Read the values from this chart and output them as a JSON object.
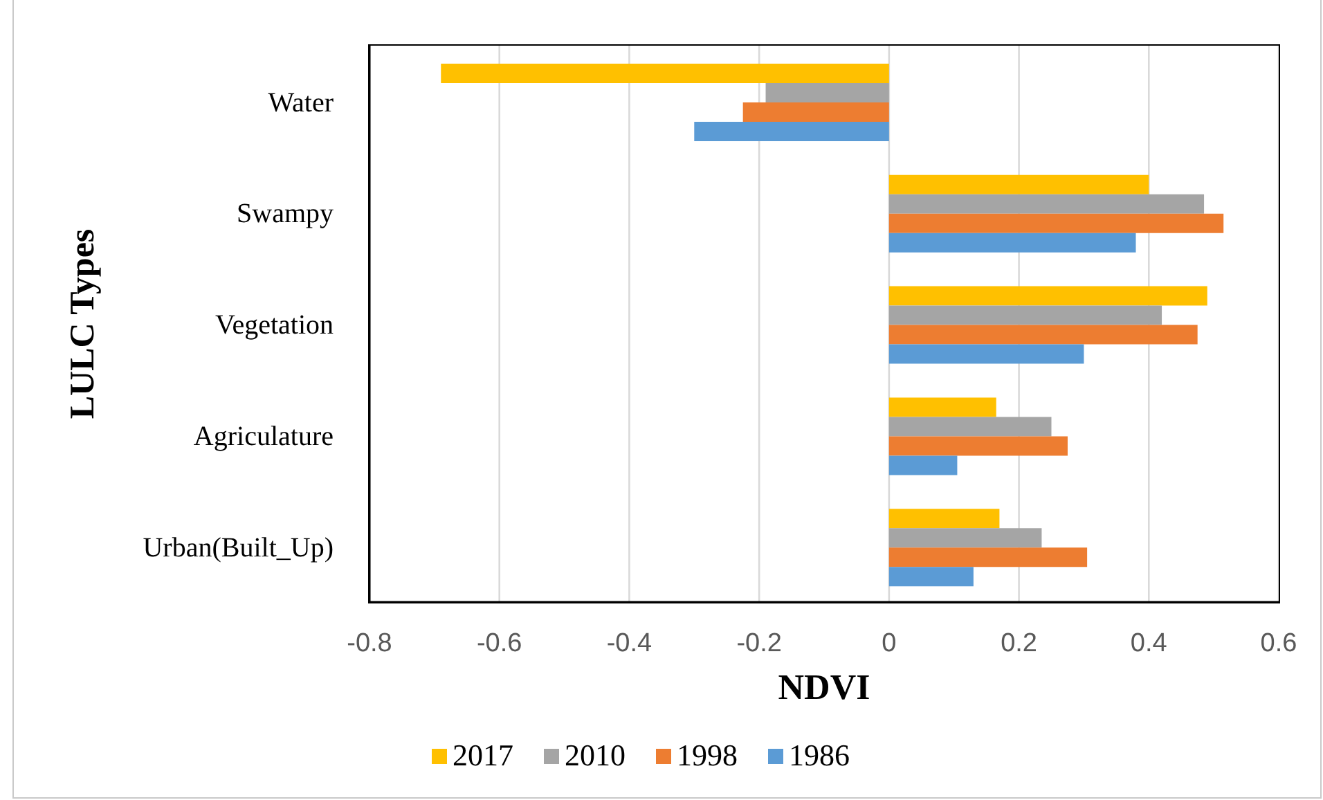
{
  "chart_data": {
    "type": "bar",
    "orientation": "horizontal",
    "xlabel": "NDVI",
    "ylabel": "LULC Types",
    "categories": [
      "Water",
      "Swampy",
      "Vegetation",
      "Agriculature",
      "Urban(Built_Up)"
    ],
    "series": [
      {
        "name": "2017",
        "color": "#ffc000",
        "values": [
          -0.69,
          0.4,
          0.49,
          0.165,
          0.17
        ]
      },
      {
        "name": "2010",
        "color": "#a5a5a5",
        "values": [
          -0.19,
          0.485,
          0.42,
          0.25,
          0.235
        ]
      },
      {
        "name": "1998",
        "color": "#ed7d31",
        "values": [
          -0.225,
          0.515,
          0.475,
          0.275,
          0.305
        ]
      },
      {
        "name": "1986",
        "color": "#5b9bd5",
        "values": [
          -0.3,
          0.38,
          0.3,
          0.105,
          0.13
        ]
      }
    ],
    "xlim": [
      -0.8,
      0.6
    ],
    "xticks": [
      -0.8,
      -0.6,
      -0.4,
      -0.2,
      0,
      0.2,
      0.4,
      0.6
    ],
    "grid": "x",
    "legend": "bottom"
  }
}
